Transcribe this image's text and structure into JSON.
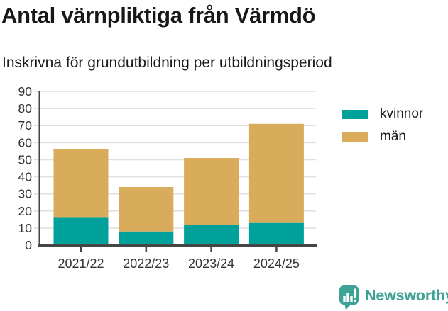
{
  "chart_data": {
    "type": "bar",
    "stacked": true,
    "title": "Antal värnpliktiga från Värmdö",
    "subtitle": "Inskrivna för grundutbildning per utbildningsperiod",
    "categories": [
      "2021/22",
      "2022/23",
      "2023/24",
      "2024/25"
    ],
    "series": [
      {
        "name": "kvinnor",
        "color": "#00A19A",
        "values": [
          16,
          8,
          12,
          13
        ]
      },
      {
        "name": "män",
        "color": "#D9AC5C",
        "values": [
          40,
          26,
          39,
          58
        ]
      }
    ],
    "stacked_totals": [
      56,
      34,
      51,
      71
    ],
    "xlabel": "",
    "ylabel": "",
    "ylim": [
      0,
      90
    ],
    "ytick_step": 10,
    "grid": true,
    "legend_position": "right"
  },
  "footer": {
    "brand": "Newsworthy",
    "brand_color": "#3EA296"
  }
}
